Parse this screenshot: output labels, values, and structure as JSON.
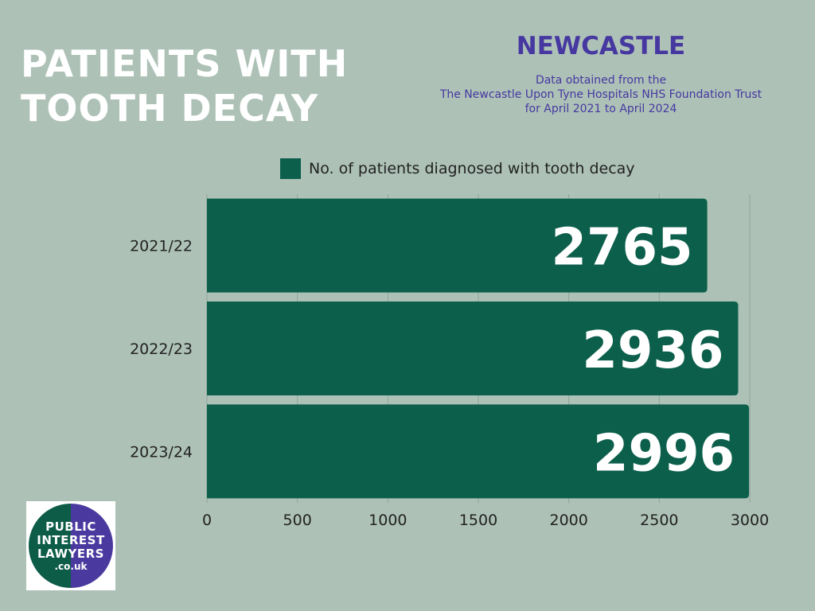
{
  "header": {
    "title_line1": "PATIENTS WITH",
    "title_line2": "TOOTH DECAY",
    "region": "NEWCASTLE",
    "source_line1": "Data obtained from the",
    "source_line2": "The Newcastle Upon Tyne Hospitals NHS Foundation Trust",
    "source_line3": "for April 2021 to April 2024"
  },
  "logo": {
    "line1": "PUBLIC",
    "line2": "INTEREST",
    "line3": "LAWYERS",
    "line4": ".co.uk"
  },
  "chart_data": {
    "type": "bar",
    "orientation": "horizontal",
    "categories": [
      "2021/22",
      "2022/23",
      "2023/24"
    ],
    "series": [
      {
        "name": "No. of patients diagnosed with tooth decay",
        "values": [
          2765,
          2936,
          2996
        ]
      }
    ],
    "xlim": [
      0,
      3000
    ],
    "xticks": [
      0,
      500,
      1000,
      1500,
      2000,
      2500,
      3000
    ],
    "grid": true,
    "legend_position": "top",
    "bar_color": "#0c5f4b",
    "value_label_color": "#ffffff"
  }
}
